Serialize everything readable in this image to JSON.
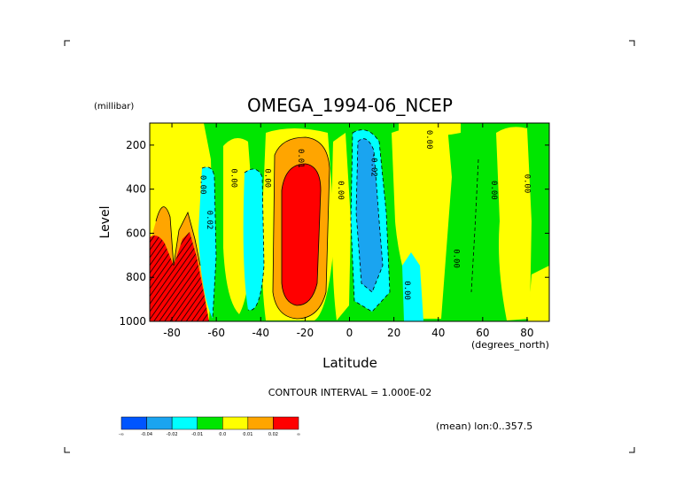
{
  "chart_data": {
    "type": "heatmap",
    "title": "OMEGA_1994-06_NCEP",
    "xlabel": "Latitude",
    "ylabel": "Level",
    "y_units": "(millibar)",
    "x_units": "(degrees_north)",
    "xlim": [
      -90,
      90
    ],
    "ylim": [
      1000,
      100
    ],
    "x_ticks": [
      -80,
      -60,
      -40,
      -20,
      0,
      20,
      40,
      60,
      80
    ],
    "x_tick_labels": [
      "-80",
      "-60",
      "-40",
      "-20",
      "0",
      "20",
      "40",
      "60",
      "80"
    ],
    "y_ticks": [
      200,
      400,
      600,
      800,
      1000
    ],
    "y_tick_labels": [
      "200",
      "400",
      "600",
      "800",
      "1000"
    ],
    "contour_interval_text": "CONTOUR INTERVAL = 1.000E-02",
    "mean_note": "(mean) lon:0..357.5",
    "colorbar": {
      "labels": [
        "-∞",
        "-0.04",
        "-0.02",
        "-0.01",
        "0.0",
        "0.01",
        "0.02",
        "∞"
      ],
      "colors": [
        "#0055ff",
        "#1aa4f0",
        "#00ffff",
        "#00e600",
        "#ffff00",
        "#ffa500",
        "#ff0000"
      ]
    },
    "contour_labels": [
      {
        "text": "0.00",
        "lat": -67,
        "lev": 380
      },
      {
        "text": "0.00",
        "lat": -53,
        "lev": 350
      },
      {
        "text": "0.00",
        "lat": -38,
        "lev": 350
      },
      {
        "text": "0.00",
        "lat": -5,
        "lev": 405
      },
      {
        "text": "0.00",
        "lat": 35,
        "lev": 175
      },
      {
        "text": "0.00",
        "lat": 47,
        "lev": 715
      },
      {
        "text": "0.00",
        "lat": 64,
        "lev": 405
      },
      {
        "text": "0.00",
        "lat": 79,
        "lev": 375
      },
      {
        "text": "0.00",
        "lat": 25,
        "lev": 860
      },
      {
        "text": "0.01",
        "lat": -23,
        "lev": 260
      },
      {
        "text": "0.02",
        "lat": -64,
        "lev": 540
      },
      {
        "text": "-0.02",
        "lat": 10,
        "lev": 290
      }
    ]
  }
}
